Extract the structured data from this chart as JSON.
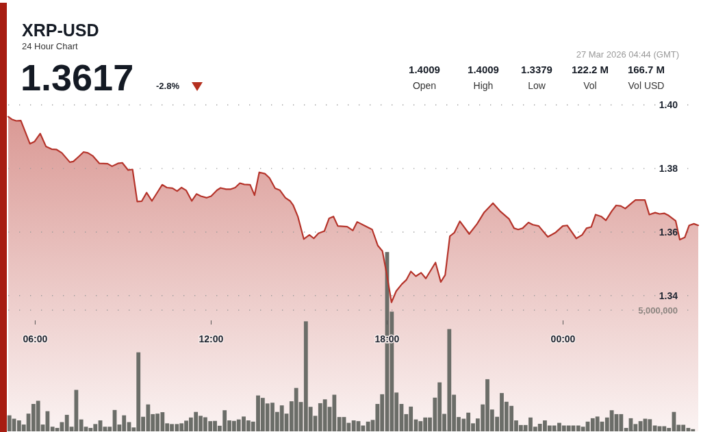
{
  "chart_data": {
    "type": "area",
    "title": "XRP-USD",
    "subtitle": "24 Hour Chart",
    "annotations": [
      "1.3617",
      "-2.8%",
      "1.4009",
      "Open",
      "1.4009",
      "High",
      "1.3379",
      "Low",
      "122.2 M",
      "Vol",
      "166.7 M",
      "Vol USD",
      "27 Mar 2026 04:44 (GMT)"
    ],
    "xlim": [
      5.08,
      28.61
    ],
    "xticks": [
      {
        "value": 6,
        "label": "06:00"
      },
      {
        "value": 12,
        "label": "12:00"
      },
      {
        "value": 18,
        "label": "18:00"
      },
      {
        "value": 24,
        "label": "00:00"
      }
    ],
    "ylim": [
      1.2973,
      1.4
    ],
    "yticks": [
      {
        "value": 1.34,
        "label": "1.34"
      },
      {
        "value": 1.36,
        "label": "1.36"
      },
      {
        "value": 1.38,
        "label": "1.38"
      },
      {
        "value": 1.4,
        "label": "1.40"
      }
    ],
    "y2lim": [
      0,
      13470000
    ],
    "y2ticks": [
      {
        "value": 0,
        "label": null
      },
      {
        "value": 5000000,
        "label": "5,000,000"
      }
    ],
    "grid": "y",
    "series": [
      {
        "color": "#b5332a",
        "x": [
          5.08,
          5.2,
          5.35,
          5.51,
          5.82,
          5.98,
          6.17,
          6.37,
          6.56,
          6.72,
          6.91,
          7.18,
          7.3,
          7.49,
          7.65,
          7.8,
          7.96,
          8.19,
          8.47,
          8.62,
          8.82,
          8.97,
          9.17,
          9.32,
          9.48,
          9.63,
          9.8,
          9.98,
          10.18,
          10.33,
          10.49,
          10.68,
          10.84,
          10.99,
          11.15,
          11.34,
          11.5,
          11.65,
          11.85,
          12.0,
          12.2,
          12.32,
          12.51,
          12.67,
          12.82,
          12.98,
          13.13,
          13.33,
          13.48,
          13.64,
          13.83,
          13.99,
          14.18,
          14.34,
          14.53,
          14.69,
          14.8,
          14.96,
          15.16,
          15.35,
          15.5,
          15.66,
          15.86,
          16.02,
          16.17,
          16.32,
          16.64,
          16.83,
          16.98,
          17.26,
          17.49,
          17.68,
          17.84,
          18.0,
          18.15,
          18.31,
          18.5,
          18.66,
          18.81,
          18.98,
          19.16,
          19.32,
          19.65,
          19.83,
          19.98,
          20.14,
          20.29,
          20.48,
          20.8,
          21.07,
          21.31,
          21.61,
          21.85,
          22.16,
          22.33,
          22.47,
          22.62,
          22.82,
          22.97,
          23.17,
          23.48,
          23.75,
          23.99,
          24.14,
          24.45,
          24.65,
          24.8,
          24.96,
          25.11,
          25.3,
          25.46,
          25.66,
          25.81,
          25.97,
          26.12,
          26.36,
          26.47,
          26.79,
          26.94,
          27.14,
          27.29,
          27.45,
          27.6,
          27.84,
          27.98,
          28.15,
          28.3,
          28.46,
          28.61
        ],
        "values": [
          1.3963,
          1.3955,
          1.395,
          1.3951,
          1.3878,
          1.3885,
          1.391,
          1.3869,
          1.3861,
          1.386,
          1.3849,
          1.382,
          1.3822,
          1.3838,
          1.3852,
          1.3849,
          1.384,
          1.3816,
          1.3815,
          1.3807,
          1.3816,
          1.3818,
          1.3795,
          1.3797,
          1.3696,
          1.3697,
          1.3724,
          1.3698,
          1.3727,
          1.3749,
          1.374,
          1.3738,
          1.3729,
          1.374,
          1.3731,
          1.3698,
          1.372,
          1.3713,
          1.3708,
          1.3713,
          1.3732,
          1.3739,
          1.3735,
          1.3735,
          1.374,
          1.3754,
          1.375,
          1.3749,
          1.3716,
          1.3788,
          1.3784,
          1.377,
          1.3738,
          1.3732,
          1.3708,
          1.3698,
          1.3684,
          1.3648,
          1.3578,
          1.3591,
          1.358,
          1.3596,
          1.3603,
          1.3643,
          1.3649,
          1.3619,
          1.3617,
          1.3605,
          1.3632,
          1.3619,
          1.3608,
          1.3558,
          1.354,
          1.3461,
          1.3379,
          1.3414,
          1.3436,
          1.345,
          1.3476,
          1.3461,
          1.3472,
          1.3454,
          1.3504,
          1.3443,
          1.3465,
          1.3587,
          1.3598,
          1.3634,
          1.3594,
          1.3626,
          1.3662,
          1.3691,
          1.3666,
          1.3641,
          1.3612,
          1.3608,
          1.3612,
          1.363,
          1.3623,
          1.3619,
          1.3585,
          1.3599,
          1.3619,
          1.3621,
          1.358,
          1.3591,
          1.3612,
          1.3616,
          1.3655,
          1.3649,
          1.3637,
          1.3666,
          1.3684,
          1.3682,
          1.3674,
          1.3693,
          1.3701,
          1.3701,
          1.3655,
          1.3661,
          1.3657,
          1.3659,
          1.3652,
          1.3635,
          1.3576,
          1.3583,
          1.3621,
          1.3626,
          1.3621
        ]
      },
      {
        "type": "bar",
        "axis": "y2",
        "color": "#6b6d68",
        "x": [
          5.12,
          5.28,
          5.45,
          5.61,
          5.77,
          5.94,
          6.1,
          6.26,
          6.42,
          6.59,
          6.75,
          6.91,
          7.08,
          7.24,
          7.4,
          7.57,
          7.73,
          7.89,
          8.05,
          8.22,
          8.38,
          8.54,
          8.71,
          8.87,
          9.03,
          9.2,
          9.36,
          9.52,
          9.68,
          9.85,
          10.01,
          10.17,
          10.34,
          10.5,
          10.66,
          10.83,
          10.99,
          11.15,
          11.31,
          11.48,
          11.64,
          11.8,
          11.97,
          12.13,
          12.29,
          12.46,
          12.62,
          12.78,
          12.94,
          13.11,
          13.27,
          13.43,
          13.6,
          13.76,
          13.92,
          14.09,
          14.25,
          14.41,
          14.57,
          14.74,
          14.9,
          15.06,
          15.23,
          15.39,
          15.55,
          15.72,
          15.88,
          16.04,
          16.2,
          16.37,
          16.53,
          16.69,
          16.86,
          17.02,
          17.18,
          17.35,
          17.51,
          17.67,
          17.83,
          18.0,
          18.16,
          18.32,
          18.49,
          18.65,
          18.81,
          18.98,
          19.14,
          19.3,
          19.46,
          19.63,
          19.79,
          19.95,
          20.12,
          20.28,
          20.44,
          20.61,
          20.77,
          20.93,
          21.09,
          21.26,
          21.42,
          21.58,
          21.75,
          21.91,
          22.07,
          22.24,
          22.4,
          22.56,
          22.72,
          22.89,
          23.05,
          23.21,
          23.38,
          23.54,
          23.7,
          23.87,
          24.03,
          24.19,
          24.35,
          24.52,
          24.68,
          24.84,
          25.01,
          25.17,
          25.33,
          25.5,
          25.66,
          25.82,
          25.98,
          26.15,
          26.31,
          26.47,
          26.64,
          26.8,
          26.96,
          27.13,
          27.29,
          27.45,
          27.61,
          27.78,
          27.94,
          28.1,
          28.27,
          28.43
        ],
        "values": [
          660000,
          520000,
          450000,
          280000,
          730000,
          1130000,
          1260000,
          280000,
          830000,
          190000,
          140000,
          380000,
          680000,
          190000,
          1710000,
          490000,
          190000,
          140000,
          300000,
          450000,
          190000,
          190000,
          880000,
          280000,
          660000,
          380000,
          160000,
          3260000,
          600000,
          1110000,
          710000,
          730000,
          790000,
          330000,
          300000,
          300000,
          330000,
          440000,
          570000,
          800000,
          640000,
          580000,
          420000,
          430000,
          230000,
          870000,
          450000,
          430000,
          490000,
          610000,
          450000,
          400000,
          1480000,
          1380000,
          1150000,
          1180000,
          800000,
          1070000,
          730000,
          1240000,
          1790000,
          1210000,
          4540000,
          1010000,
          640000,
          1160000,
          1320000,
          1010000,
          1510000,
          590000,
          590000,
          350000,
          450000,
          420000,
          240000,
          400000,
          470000,
          1130000,
          1530000,
          7400000,
          4940000,
          1600000,
          1130000,
          710000,
          1020000,
          490000,
          420000,
          570000,
          570000,
          1390000,
          2020000,
          720000,
          4220000,
          1510000,
          590000,
          520000,
          770000,
          330000,
          530000,
          1110000,
          2150000,
          900000,
          600000,
          1580000,
          1220000,
          1050000,
          450000,
          260000,
          260000,
          570000,
          190000,
          310000,
          450000,
          240000,
          240000,
          350000,
          240000,
          240000,
          240000,
          240000,
          190000,
          400000,
          540000,
          610000,
          400000,
          570000,
          870000,
          710000,
          710000,
          140000,
          540000,
          300000,
          420000,
          520000,
          500000,
          240000,
          210000,
          210000,
          140000,
          800000,
          270000,
          270000,
          140000,
          90000
        ]
      }
    ]
  }
}
